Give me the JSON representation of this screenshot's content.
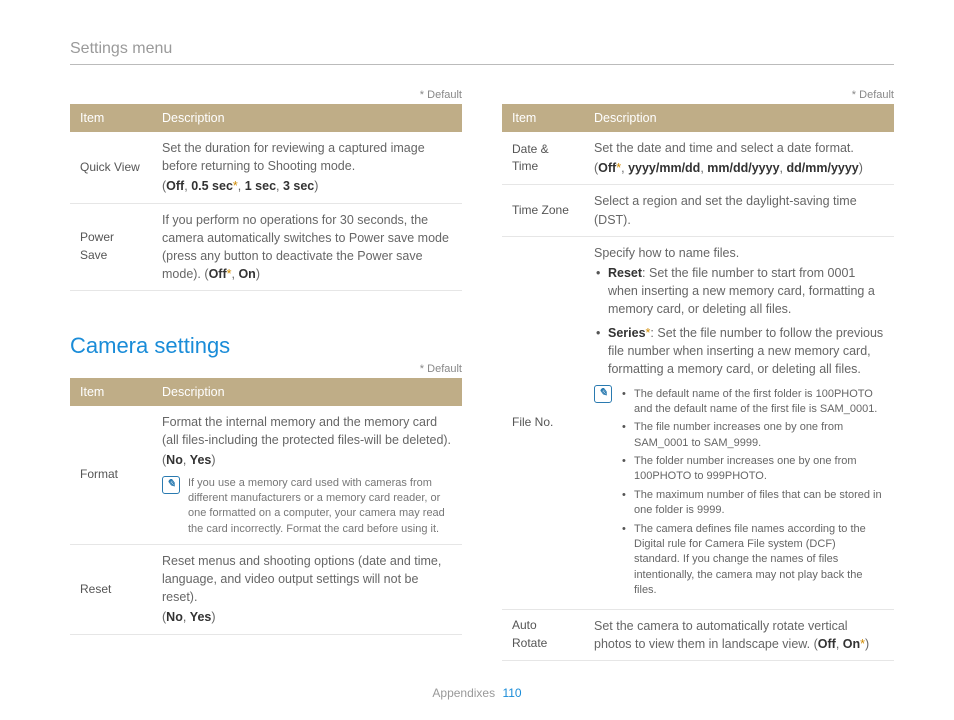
{
  "header": {
    "title": "Settings menu"
  },
  "defaultNote": "* Default",
  "sectionTitle": "Camera settings",
  "tableHeaders": {
    "item": "Item",
    "description": "Description"
  },
  "left": {
    "table1": {
      "rows": [
        {
          "item": "Quick View",
          "desc": "Set the duration for reviewing a captured image before returning to Shooting mode.",
          "opts": [
            "Off",
            "0.5 sec*",
            "1 sec",
            "3 sec"
          ]
        },
        {
          "item": "Power Save",
          "desc": "If you perform no operations for 30 seconds, the camera automatically switches to Power save mode (press any button to deactivate the Power save mode).",
          "optsInline": [
            "Off*",
            "On"
          ]
        }
      ]
    },
    "table2": {
      "rows": [
        {
          "item": "Format",
          "desc": "Format the internal memory and the memory card (all files-including the protected files-will be deleted).",
          "opts": [
            "No",
            "Yes"
          ],
          "note": "If you use a memory card used with cameras from different manufacturers or a memory card reader, or one formatted on a computer, your camera may read the card incorrectly. Format the card before using it."
        },
        {
          "item": "Reset",
          "desc": "Reset menus and shooting options (date and time, language, and video output settings will not be reset).",
          "opts": [
            "No",
            "Yes"
          ]
        }
      ]
    }
  },
  "right": {
    "table": {
      "rows": [
        {
          "item": "Date & Time",
          "desc": "Set the date and time and select a date format.",
          "opts": [
            "Off*",
            "yyyy/mm/dd",
            "mm/dd/yyyy",
            "dd/mm/yyyy"
          ]
        },
        {
          "item": "Time Zone",
          "desc": "Select a region and set the daylight-saving time (DST)."
        },
        {
          "item": "File No.",
          "lead": "Specify how to name files.",
          "bullets": [
            {
              "label": "Reset",
              "text": ": Set the file number to start from 0001 when inserting a new memory card, formatting a memory card, or deleting all files."
            },
            {
              "label": "Series*",
              "text": ": Set the file number to follow the previous file number when inserting a new memory card, formatting a memory card, or deleting all files."
            }
          ],
          "noteBullets": [
            "The default name of the first folder is 100PHOTO and the default name of the first file is SAM_0001.",
            "The file number increases one by one from SAM_0001 to SAM_9999.",
            "The folder number increases one by one from 100PHOTO to 999PHOTO.",
            "The maximum number of files that can be stored in one folder is 9999.",
            "The camera defines file names according to the Digital rule for Camera File system (DCF) standard. If you change the names of files intentionally, the camera may not play back the files."
          ]
        },
        {
          "item": "Auto Rotate",
          "desc": "Set the camera to automatically rotate vertical photos to view them in landscape view.",
          "optsInline": [
            "Off",
            "On*"
          ]
        }
      ]
    }
  },
  "footer": {
    "label": "Appendixes",
    "page": "110"
  }
}
